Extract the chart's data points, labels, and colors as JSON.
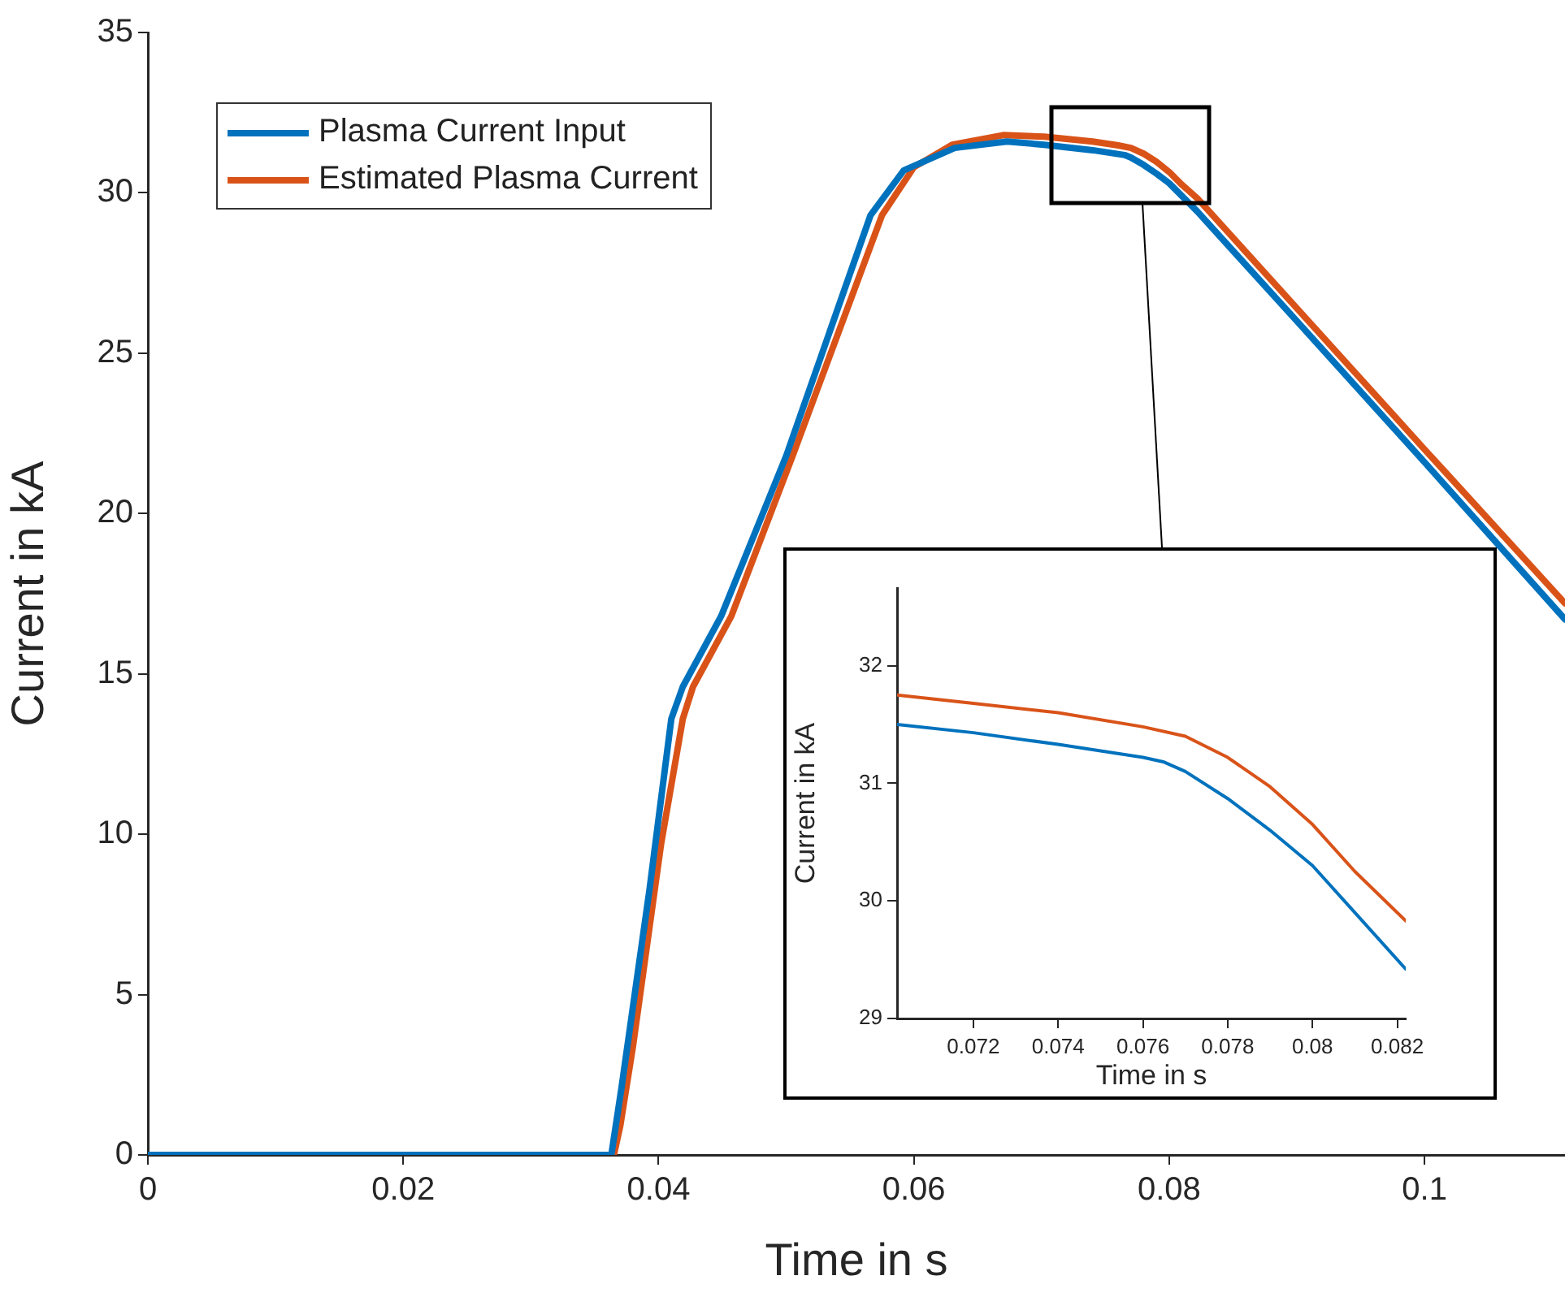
{
  "chart_data": [
    {
      "type": "line",
      "xlabel": "Time in s",
      "ylabel": "Current in kA",
      "xlim": [
        0,
        0.111
      ],
      "xticks": [
        0,
        0.02,
        0.04,
        0.06,
        0.08,
        0.1
      ],
      "ylim": [
        0,
        35
      ],
      "yticks": [
        0,
        5,
        10,
        15,
        20,
        25,
        30,
        35
      ],
      "grid": false,
      "legend": "top left",
      "marker": "none",
      "line_style": "solid",
      "series": [
        {
          "name": "Plasma Current Input",
          "color": "#0072bd",
          "x": [
            0,
            0.0363,
            0.0371,
            0.0393,
            0.041,
            0.0419,
            0.0449,
            0.05,
            0.0566,
            0.0592,
            0.0632,
            0.0673,
            0.0702,
            0.074,
            0.0765,
            0.077,
            0.078,
            0.079,
            0.08,
            0.081,
            0.0822,
            0.09,
            0.1,
            0.111
          ],
          "values": [
            0,
            0,
            2.1,
            8.3,
            13.6,
            14.6,
            16.8,
            21.8,
            29.3,
            30.7,
            31.4,
            31.6,
            31.5,
            31.33,
            31.18,
            31.1,
            30.87,
            30.6,
            30.3,
            29.9,
            29.42,
            26.0,
            21.6,
            16.7
          ]
        },
        {
          "name": "Estimated Plasma Current",
          "color": "#d95319",
          "x": [
            0,
            0.0365,
            0.037,
            0.038,
            0.0402,
            0.0419,
            0.0427,
            0.0457,
            0.0505,
            0.0575,
            0.06,
            0.063,
            0.067,
            0.0702,
            0.074,
            0.076,
            0.077,
            0.078,
            0.079,
            0.08,
            0.081,
            0.0822,
            0.09,
            0.1,
            0.111
          ],
          "values": [
            0,
            0,
            0.9,
            3.4,
            9.7,
            13.6,
            14.6,
            16.8,
            21.8,
            29.3,
            30.8,
            31.5,
            31.8,
            31.75,
            31.6,
            31.48,
            31.4,
            31.22,
            30.97,
            30.65,
            30.25,
            29.83,
            26.4,
            22.0,
            17.2
          ]
        }
      ]
    },
    {
      "type": "line",
      "xlabel": "Time in s",
      "ylabel": "Current in kA",
      "xlim": [
        0.0702,
        0.0822
      ],
      "xticks": [
        0.072,
        0.074,
        0.076,
        0.078,
        0.08,
        0.082
      ],
      "ylim": [
        29,
        32.66
      ],
      "yticks": [
        29,
        30,
        31,
        32
      ],
      "grid": false,
      "marker": "none",
      "line_style": "solid",
      "series": [
        {
          "color": "#0072bd",
          "x": [
            0.0702,
            0.072,
            0.074,
            0.076,
            0.0765,
            0.077,
            0.078,
            0.079,
            0.08,
            0.081,
            0.0822
          ],
          "values": [
            31.5,
            31.43,
            31.33,
            31.22,
            31.18,
            31.1,
            30.87,
            30.6,
            30.3,
            29.9,
            29.42
          ]
        },
        {
          "color": "#d95319",
          "x": [
            0.0702,
            0.072,
            0.074,
            0.076,
            0.077,
            0.078,
            0.079,
            0.08,
            0.081,
            0.0822
          ],
          "values": [
            31.75,
            31.68,
            31.6,
            31.48,
            31.4,
            31.22,
            30.97,
            30.65,
            30.25,
            29.83
          ]
        }
      ]
    }
  ]
}
